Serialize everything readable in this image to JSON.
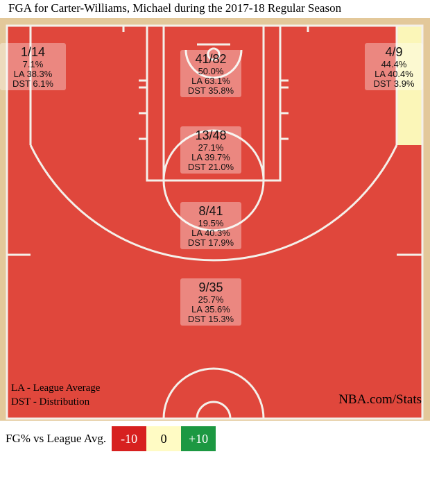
{
  "chart_data": {
    "type": "shot-chart",
    "title": "FGA for Carter-Williams, Michael during the 2017-18 Regular Season",
    "zones": [
      {
        "id": "left-corner-3",
        "made_attempts": "1/14",
        "fg_pct": "7.1%",
        "la": "LA 38.3%",
        "dst": "DST 6.1%",
        "color": "#e0473c"
      },
      {
        "id": "restricted-area",
        "made_attempts": "41/82",
        "fg_pct": "50.0%",
        "la": "LA 63.1%",
        "dst": "DST 35.8%",
        "color": "#e0473c"
      },
      {
        "id": "right-corner-3",
        "made_attempts": "4/9",
        "fg_pct": "44.4%",
        "la": "LA 40.4%",
        "dst": "DST 3.9%",
        "color": "#fbf6b8"
      },
      {
        "id": "paint-non-ra",
        "made_attempts": "13/48",
        "fg_pct": "27.1%",
        "la": "LA 39.7%",
        "dst": "DST 21.0%",
        "color": "#e0473c"
      },
      {
        "id": "mid-range",
        "made_attempts": "8/41",
        "fg_pct": "19.5%",
        "la": "LA 40.3%",
        "dst": "DST 17.9%",
        "color": "#e0473c"
      },
      {
        "id": "above-break-3",
        "made_attempts": "9/35",
        "fg_pct": "25.7%",
        "la": "LA 35.6%",
        "dst": "DST 15.3%",
        "color": "#e0473c"
      }
    ],
    "notes": {
      "la": "LA - League Average",
      "dst": "DST - Distribution",
      "source": "NBA.com/Stats"
    },
    "legend": {
      "label": "FG% vs League Avg.",
      "items": [
        {
          "text": "-10",
          "color": "#d7201f"
        },
        {
          "text": "0",
          "color": "#fffbc4"
        },
        {
          "text": "+10",
          "color": "#1c9842"
        }
      ]
    }
  }
}
